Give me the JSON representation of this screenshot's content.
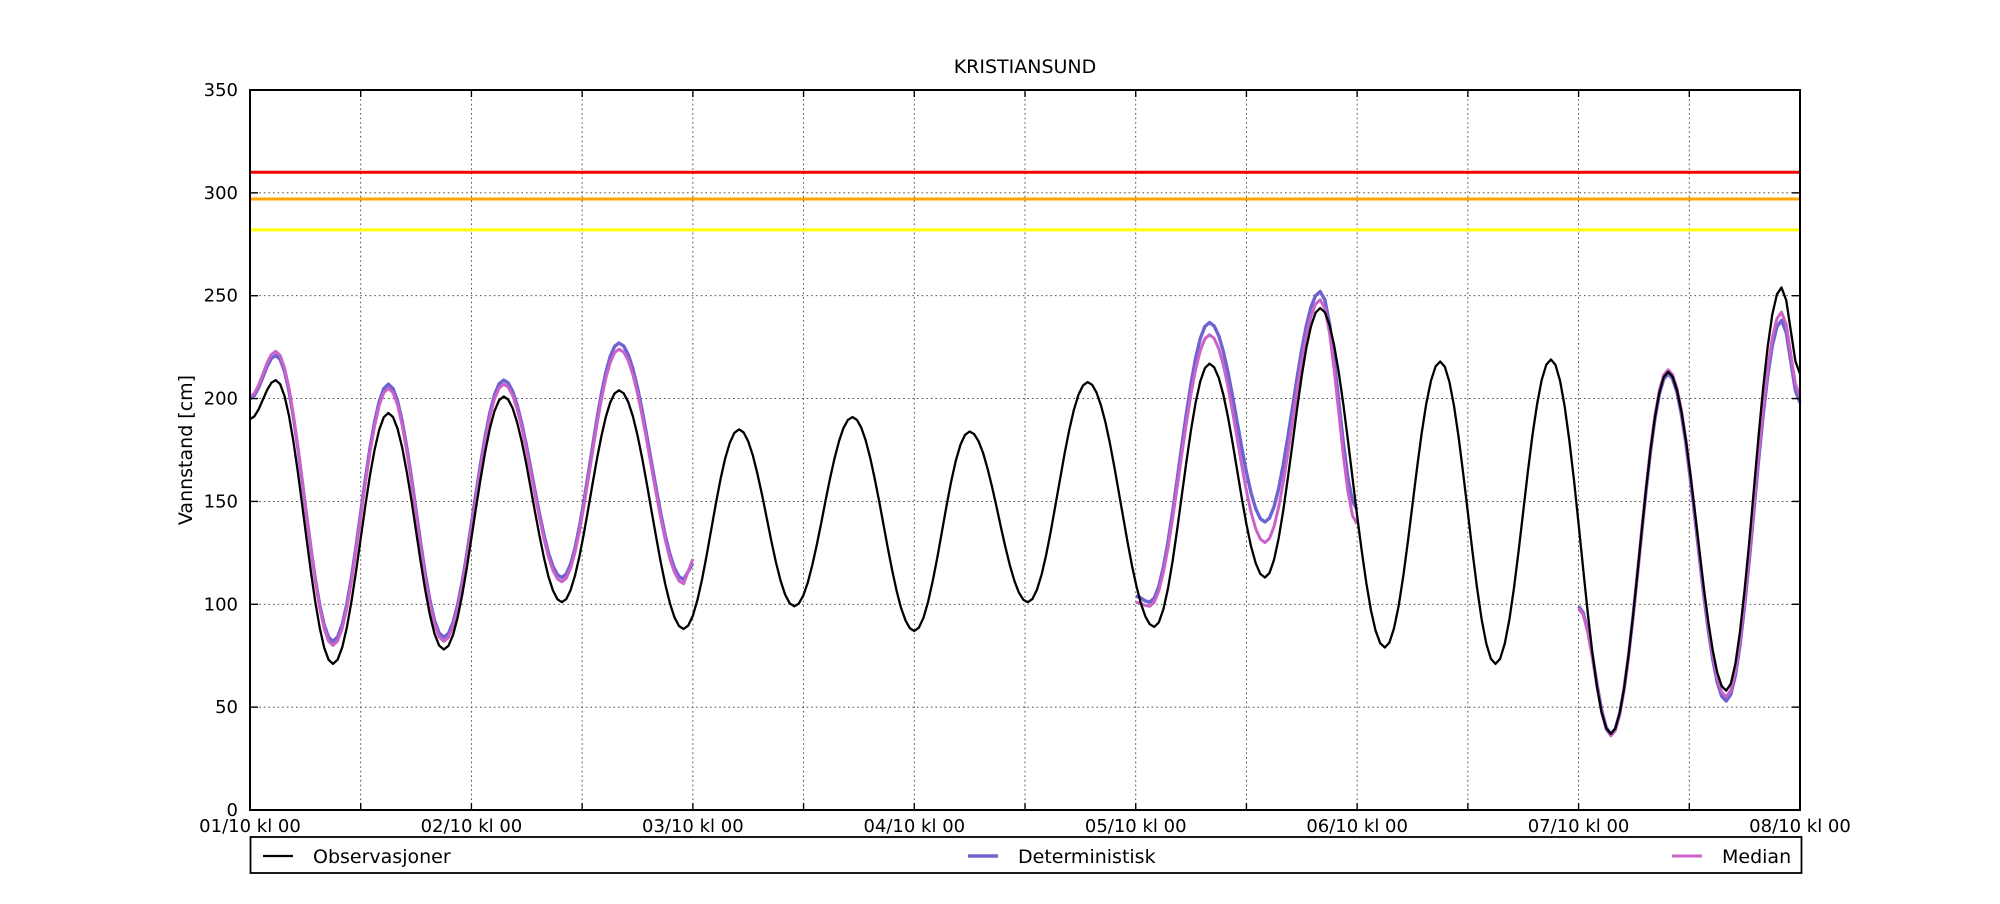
{
  "chart_data": {
    "type": "line",
    "title": "KRISTIANSUND",
    "ylabel": "Vannstand [cm]",
    "xlabel": "",
    "ylim": [
      0,
      350
    ],
    "yticks": [
      0,
      50,
      100,
      150,
      200,
      250,
      300,
      350
    ],
    "xlim_hours": [
      0,
      168
    ],
    "xticks": [
      {
        "t": 0,
        "label": "01/10 kl 00"
      },
      {
        "t": 24,
        "label": "02/10 kl 00"
      },
      {
        "t": 48,
        "label": "03/10 kl 00"
      },
      {
        "t": 72,
        "label": "04/10 kl 00"
      },
      {
        "t": 96,
        "label": "05/10 kl 00"
      },
      {
        "t": 120,
        "label": "06/10 kl 00"
      },
      {
        "t": 144,
        "label": "07/10 kl 00"
      },
      {
        "t": 168,
        "label": "08/10 kl 00"
      }
    ],
    "grid": {
      "style": "dotted",
      "x_interval_hours": 12,
      "y_interval": 50,
      "color": "#3c3c3c"
    },
    "thresholds": [
      {
        "name": "red-alert-level",
        "value": 310,
        "color": "#f50105"
      },
      {
        "name": "orange-alert-level",
        "value": 297,
        "color": "#ffa500"
      },
      {
        "name": "yellow-alert-level",
        "value": 282,
        "color": "#ffff00"
      }
    ],
    "series": [
      {
        "name": "Observasjoner",
        "color": "#000000",
        "line_width": 2.3,
        "segments": [
          [
            [
              0,
              190
            ],
            [
              2.8,
              209
            ],
            [
              9,
              71
            ],
            [
              15,
              193
            ],
            [
              21,
              78
            ],
            [
              27.5,
              201
            ],
            [
              33.8,
              101
            ],
            [
              40,
              204
            ],
            [
              47,
              88
            ],
            [
              53,
              185
            ],
            [
              59,
              99
            ],
            [
              65.3,
              191
            ],
            [
              72,
              87
            ],
            [
              78,
              184
            ],
            [
              84.3,
              101
            ],
            [
              90.8,
              208
            ],
            [
              98,
              89
            ],
            [
              104,
              217
            ],
            [
              110,
              113
            ],
            [
              116,
              244
            ],
            [
              123,
              79
            ],
            [
              129,
              218
            ],
            [
              135,
              71
            ],
            [
              141,
              219
            ],
            [
              147.5,
              37
            ],
            [
              153.7,
              213
            ],
            [
              160,
              58
            ],
            [
              166,
              254
            ],
            [
              168,
              212
            ]
          ]
        ]
      },
      {
        "name": "Deterministisk",
        "color": "#6f63d1",
        "line_width": 3.4,
        "segments": [
          [
            [
              0,
              200
            ],
            [
              2.8,
              221
            ],
            [
              9,
              82
            ],
            [
              15,
              207
            ],
            [
              21,
              84
            ],
            [
              27.5,
              209
            ],
            [
              33.8,
              113
            ],
            [
              40,
              227
            ],
            [
              47,
              112
            ],
            [
              48,
              120
            ]
          ],
          [
            [
              96,
              104
            ],
            [
              97.5,
              101
            ],
            [
              104,
              237
            ],
            [
              110,
              140
            ],
            [
              116,
              252
            ],
            [
              120,
              146
            ]
          ],
          [
            [
              144,
              99
            ],
            [
              147.5,
              37
            ],
            [
              153.7,
              212
            ],
            [
              160,
              53
            ],
            [
              166,
              238
            ],
            [
              168,
              198
            ]
          ]
        ]
      },
      {
        "name": "Median",
        "color": "#ca62ca",
        "line_width": 3.0,
        "segments": [
          [
            [
              0,
              201
            ],
            [
              2.8,
              223
            ],
            [
              9,
              80
            ],
            [
              15,
              205
            ],
            [
              21,
              82
            ],
            [
              27.5,
              207
            ],
            [
              33.8,
              111
            ],
            [
              40,
              224
            ],
            [
              47,
              110
            ],
            [
              48,
              122
            ]
          ],
          [
            [
              96,
              101
            ],
            [
              97.5,
              99
            ],
            [
              104,
              231
            ],
            [
              110,
              130
            ],
            [
              116,
              248
            ],
            [
              120,
              139
            ]
          ],
          [
            [
              144,
              98
            ],
            [
              147.5,
              36
            ],
            [
              153.7,
              214
            ],
            [
              160,
              55
            ],
            [
              166,
              242
            ],
            [
              168,
              201
            ]
          ]
        ]
      }
    ],
    "legend": {
      "position": "below-axis",
      "entries": [
        "Observasjoner",
        "Deterministisk",
        "Median"
      ]
    }
  }
}
